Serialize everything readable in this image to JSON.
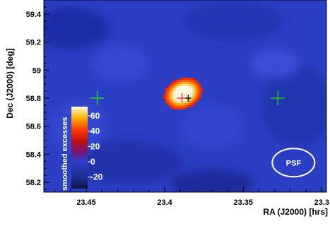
{
  "chart_data": {
    "type": "heatmap",
    "xlabel": "RA (J2000) [hrs]",
    "ylabel": "Dec (J2000) [deg]",
    "x_ticks": [
      23.45,
      23.4,
      23.35,
      23.3
    ],
    "x_tick_labels": [
      "23.45",
      "23.4",
      "23.35",
      "23.3"
    ],
    "y_ticks": [
      58.2,
      58.4,
      58.6,
      58.8,
      59.0,
      59.2,
      59.4
    ],
    "y_tick_labels": [
      "58.2",
      "58.4",
      "58.6",
      "58.8",
      "59",
      "59.2",
      "59.4"
    ],
    "x_range": [
      23.477,
      23.297
    ],
    "y_range": [
      58.13,
      59.5
    ],
    "x_axis_reversed": true,
    "grid": false,
    "colorbar": {
      "title": "smoothed excesses",
      "ticks": [
        -20,
        0,
        20,
        40,
        60
      ],
      "tick_labels": [
        "-20",
        "0",
        "20",
        "40",
        "60"
      ],
      "range": [
        -35,
        72
      ],
      "placement": "lower-left inside plot"
    },
    "source": {
      "ra": 23.389,
      "dec": 58.83,
      "peak": 70
    },
    "fit_position": {
      "ra": 23.389,
      "dec": 58.8,
      "color": "#ff3333"
    },
    "catalog_position": {
      "ra": 23.385,
      "dec": 58.8,
      "color": "#000000"
    },
    "reference_markers": [
      {
        "ra": 23.443,
        "dec": 58.8,
        "color": "#22cc22"
      },
      {
        "ra": 23.328,
        "dec": 58.8,
        "color": "#22cc22"
      }
    ],
    "psf": {
      "label": "PSF",
      "ra": 23.318,
      "dec": 58.34
    }
  }
}
